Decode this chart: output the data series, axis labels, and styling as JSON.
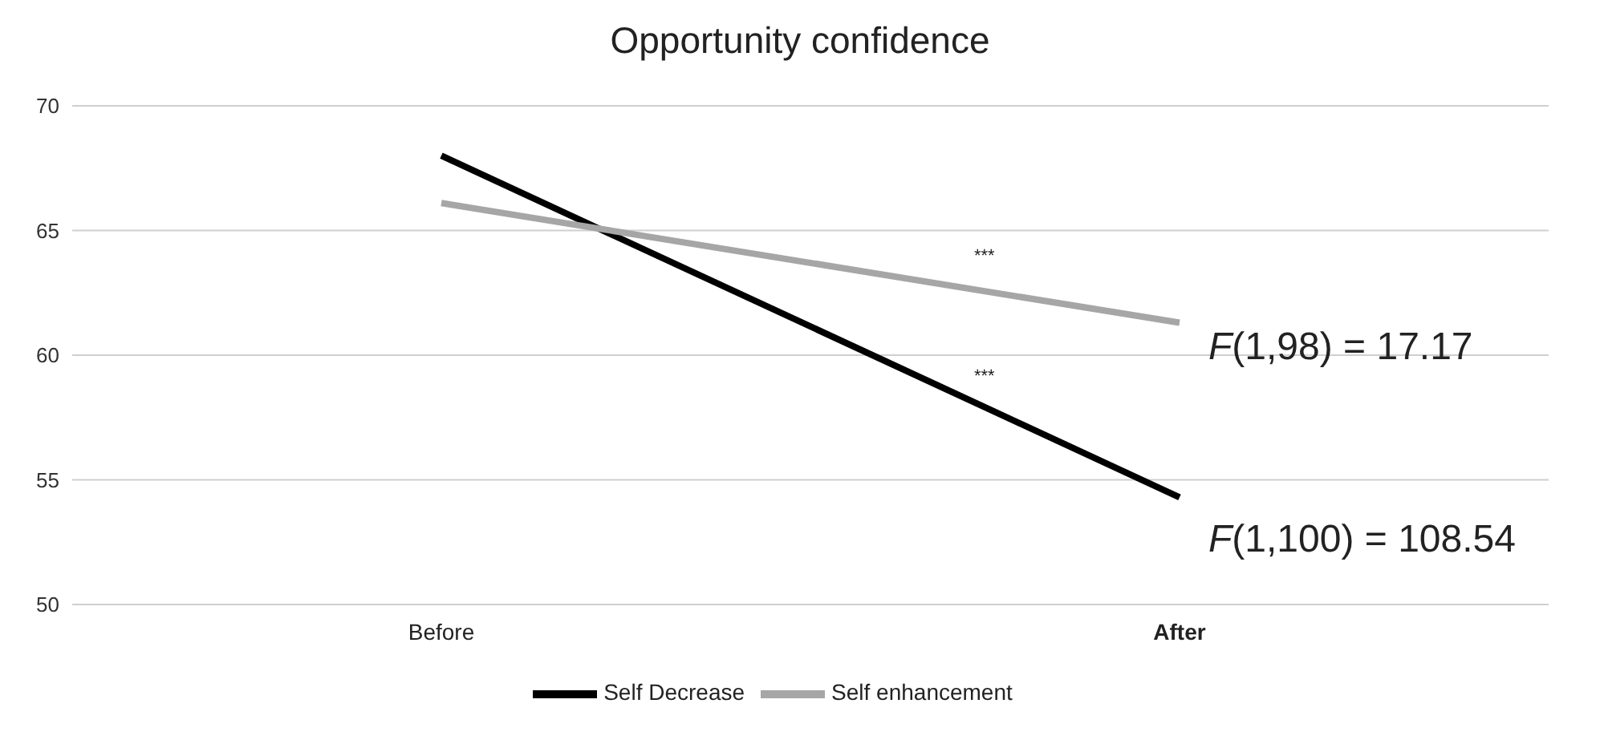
{
  "chart_data": {
    "type": "line",
    "title": "Opportunity confidence",
    "categories": [
      "Before",
      "After"
    ],
    "series": [
      {
        "name": "Self Decrease",
        "color": "#000000",
        "values": [
          68.0,
          54.3
        ]
      },
      {
        "name": "Self enhancement",
        "color": "#a6a6a6",
        "values": [
          66.1,
          61.3
        ]
      }
    ],
    "ylim": [
      50,
      70
    ],
    "yticks": [
      50,
      55,
      60,
      65,
      70
    ],
    "grid": "y",
    "legend": "bottom",
    "marker": "none",
    "line_style": "solid",
    "annotations": [
      "***",
      "***",
      "F(1,98) = 17.17",
      "F(1,100) = 108.54"
    ]
  }
}
